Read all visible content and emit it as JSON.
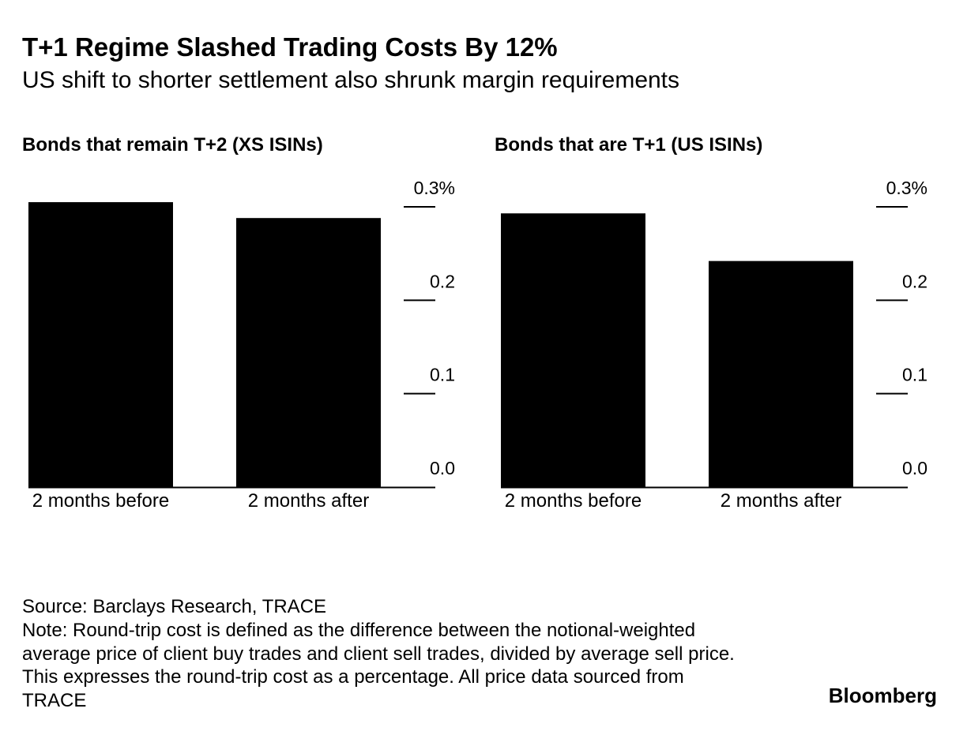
{
  "header": {
    "title": "T+1 Regime Slashed Trading Costs By 12%",
    "subtitle": "US shift to shorter settlement also shrunk margin requirements"
  },
  "chart_data": [
    {
      "type": "bar",
      "title": "Bonds that remain T+2 (XS ISINs)",
      "categories": [
        "2 months before",
        "2 months after"
      ],
      "values": [
        0.305,
        0.288
      ],
      "ylim": [
        0,
        0.3
      ],
      "yticks": [
        "0.0",
        "0.1",
        "0.2",
        "0.3%"
      ],
      "xlabel": "",
      "ylabel": ""
    },
    {
      "type": "bar",
      "title": "Bonds that are T+1 (US ISINs)",
      "categories": [
        "2 months before",
        "2 months after"
      ],
      "values": [
        0.293,
        0.242
      ],
      "ylim": [
        0,
        0.3
      ],
      "yticks": [
        "0.0",
        "0.1",
        "0.2",
        "0.3%"
      ],
      "xlabel": "",
      "ylabel": ""
    }
  ],
  "footer": {
    "source": "Source: Barclays Research, TRACE",
    "note": "Note: Round-trip cost is defined as the difference between the notional-weighted average price of client buy trades and client sell trades, divided by average sell price. This expresses the round-trip cost as a percentage. All price data sourced from TRACE",
    "brand": "Bloomberg"
  }
}
